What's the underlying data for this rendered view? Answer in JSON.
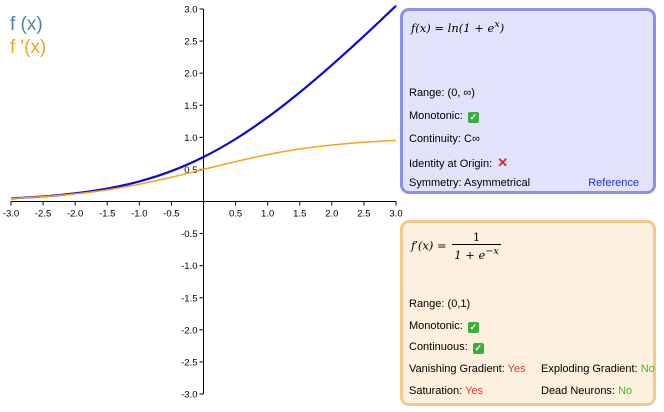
{
  "legend": {
    "f": "f (x)",
    "fp": "f '(x)"
  },
  "colors": {
    "f": "#0a0ad2",
    "fp": "#f5a219",
    "f_legend": "#4f7fb1",
    "fp_legend": "#f5a219"
  },
  "panel_f": {
    "formula_lhs": "f(x) = ln(1 + e",
    "formula_sup": "x",
    "formula_rhs": ")",
    "range": "Range: (0, ∞)",
    "monotonic": "Monotonic:",
    "monotonic_mark": "✓",
    "continuity": "Continuity: C∞",
    "identity": "Identity at Origin:",
    "identity_mark": "✕",
    "symmetry": "Symmetry: Asymmetrical",
    "reference": "Reference"
  },
  "panel_fp": {
    "formula_lhs": "f′(x) =",
    "formula_num": "1",
    "formula_den": "1 + e",
    "formula_den_sup": "−x",
    "range": "Range: (0,1)",
    "monotonic": "Monotonic:",
    "monotonic_mark": "✓",
    "continuous": "Continuous:",
    "continuous_mark": "✓",
    "vanishing_label": "Vanishing Gradient:",
    "vanishing_value": "Yes",
    "exploding_label": "Exploding Gradient:",
    "exploding_value": "No",
    "saturation_label": "Saturation:",
    "saturation_value": "Yes",
    "dead_label": "Dead Neurons:",
    "dead_value": "No"
  },
  "chart_data": {
    "type": "line",
    "xlim": [
      -3.0,
      3.0
    ],
    "ylim": [
      -3.0,
      3.0
    ],
    "x_ticks": [
      "-3.0",
      "-2.5",
      "-2.0",
      "-1.5",
      "-1.0",
      "-0.5",
      "0.5",
      "1.0",
      "1.5",
      "2.0",
      "2.5",
      "3.0"
    ],
    "y_ticks": [
      "3.0",
      "2.5",
      "2.0",
      "1.5",
      "1.0",
      "0.5",
      "-0.5",
      "-1.0",
      "-1.5",
      "-2.0",
      "-2.5",
      "-3.0"
    ],
    "grid": false,
    "series": [
      {
        "name": "f (x)",
        "x": [
          -3.0,
          -2.5,
          -2.0,
          -1.5,
          -1.0,
          -0.5,
          0.0,
          0.5,
          1.0,
          1.5,
          2.0,
          2.5,
          3.0
        ],
        "y": [
          0.049,
          0.079,
          0.127,
          0.201,
          0.313,
          0.474,
          0.693,
          0.974,
          1.313,
          1.701,
          2.127,
          2.579,
          3.049
        ]
      },
      {
        "name": "f '(x)",
        "x": [
          -3.0,
          -2.5,
          -2.0,
          -1.5,
          -1.0,
          -0.5,
          0.0,
          0.5,
          1.0,
          1.5,
          2.0,
          2.5,
          3.0
        ],
        "y": [
          0.047,
          0.076,
          0.119,
          0.182,
          0.269,
          0.378,
          0.5,
          0.622,
          0.731,
          0.818,
          0.881,
          0.924,
          0.953
        ]
      }
    ]
  }
}
